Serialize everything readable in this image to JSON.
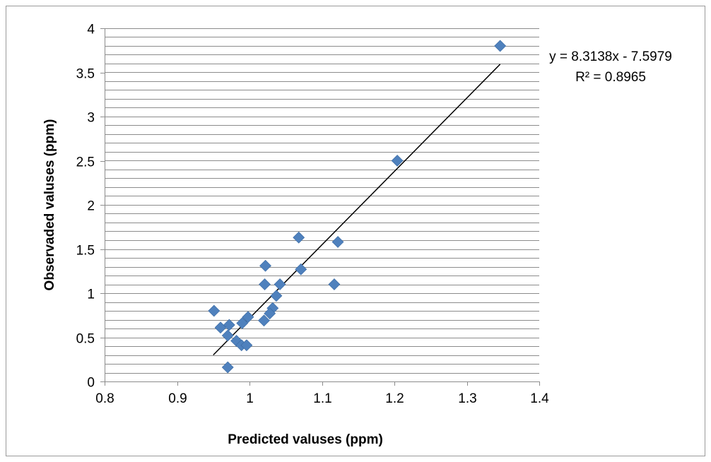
{
  "chart_data": {
    "type": "scatter",
    "title": "",
    "xlabel": "Predicted valuses (ppm)",
    "ylabel": "Observaded valuses (ppm)",
    "xlim": [
      0.8,
      1.4
    ],
    "ylim": [
      0,
      4
    ],
    "x_ticks": [
      "0.8",
      "0.9",
      "1",
      "1.1",
      "1.2",
      "1.3",
      "1.4"
    ],
    "y_ticks": [
      "0",
      "0.5",
      "1",
      "1.5",
      "2",
      "2.5",
      "3",
      "3.5",
      "4"
    ],
    "x_tick_values": [
      0.8,
      0.9,
      1.0,
      1.1,
      1.2,
      1.3,
      1.4
    ],
    "y_tick_values": [
      0,
      0.5,
      1,
      1.5,
      2,
      2.5,
      3,
      3.5,
      4
    ],
    "y_minor_gridlines_per_major": 5,
    "grid": true,
    "marker": "diamond",
    "marker_color": "#4F81BD",
    "trendline_color": "#000000",
    "points": [
      {
        "x": 1.346,
        "y": 3.8
      },
      {
        "x": 1.204,
        "y": 2.5
      },
      {
        "x": 1.068,
        "y": 1.63
      },
      {
        "x": 1.122,
        "y": 1.58
      },
      {
        "x": 1.022,
        "y": 1.31
      },
      {
        "x": 1.071,
        "y": 1.27
      },
      {
        "x": 1.021,
        "y": 1.1
      },
      {
        "x": 1.042,
        "y": 1.1
      },
      {
        "x": 1.117,
        "y": 1.1
      },
      {
        "x": 1.037,
        "y": 0.97
      },
      {
        "x": 1.032,
        "y": 0.83
      },
      {
        "x": 0.951,
        "y": 0.8
      },
      {
        "x": 1.028,
        "y": 0.77
      },
      {
        "x": 0.998,
        "y": 0.73
      },
      {
        "x": 1.02,
        "y": 0.69
      },
      {
        "x": 0.99,
        "y": 0.66
      },
      {
        "x": 0.972,
        "y": 0.64
      },
      {
        "x": 0.96,
        "y": 0.61
      },
      {
        "x": 0.97,
        "y": 0.52
      },
      {
        "x": 0.982,
        "y": 0.46
      },
      {
        "x": 0.989,
        "y": 0.41
      },
      {
        "x": 0.996,
        "y": 0.41
      },
      {
        "x": 0.97,
        "y": 0.16
      }
    ],
    "trendline": {
      "type": "linear",
      "slope": 8.3138,
      "intercept": -7.5979,
      "x_range": [
        0.95,
        1.346
      ],
      "equation_label": "y = 8.3138x - 7.5979",
      "r2_label": "R² = 0.8965"
    }
  }
}
